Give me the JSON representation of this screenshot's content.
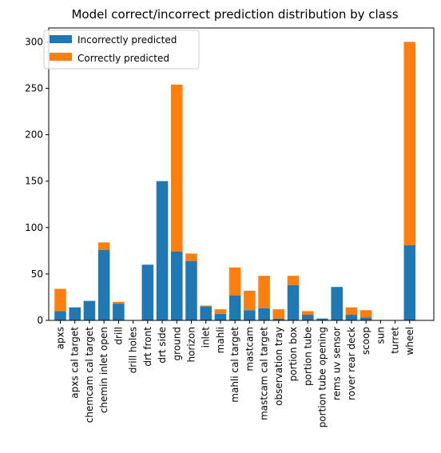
{
  "chart_data": {
    "type": "bar",
    "stacked": true,
    "title": "Model correct/incorrect prediction distribution by class",
    "xlabel": "",
    "ylabel": "",
    "ylim": [
      0,
      315
    ],
    "yticks": [
      0,
      50,
      100,
      150,
      200,
      250,
      300
    ],
    "grid": false,
    "legend_position": "top-left",
    "categories": [
      "apxs",
      "apxs cal target",
      "chemcam cal target",
      "chemin inlet open",
      "drill",
      "drill holes",
      "drt front",
      "drt side",
      "ground",
      "horizon",
      "inlet",
      "mahli",
      "mahli cal target",
      "mastcam",
      "mastcam cal target",
      "observation tray",
      "portion box",
      "portion tube",
      "portion tube opening",
      "rems uv sensor",
      "rover rear deck",
      "scoop",
      "sun",
      "turret",
      "wheel"
    ],
    "series": [
      {
        "name": "Incorrectly predicted",
        "color": "#1f77b4",
        "values": [
          10,
          14,
          21,
          76,
          18,
          0,
          60,
          150,
          74,
          64,
          15,
          7,
          27,
          11,
          13,
          2,
          38,
          6,
          2,
          36,
          6,
          3,
          0,
          0,
          81
        ]
      },
      {
        "name": "Correctly predicted",
        "color": "#ff7f0e",
        "values": [
          24,
          0,
          0,
          8,
          2,
          0,
          0,
          0,
          180,
          8,
          1,
          5,
          30,
          21,
          35,
          10,
          10,
          4,
          0,
          0,
          8,
          8,
          0,
          0,
          219
        ]
      }
    ]
  }
}
